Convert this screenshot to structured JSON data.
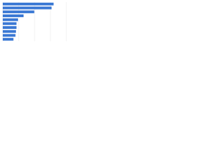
{
  "chart_data": {
    "type": "hbar",
    "categories": [
      null,
      null,
      null,
      null,
      null,
      null,
      null,
      null,
      null,
      null
    ],
    "values": [
      100,
      96,
      62,
      41,
      30,
      27,
      27,
      26,
      25,
      21
    ],
    "color": "#3a78d4",
    "xlim": [
      0,
      125
    ],
    "grid": true
  }
}
